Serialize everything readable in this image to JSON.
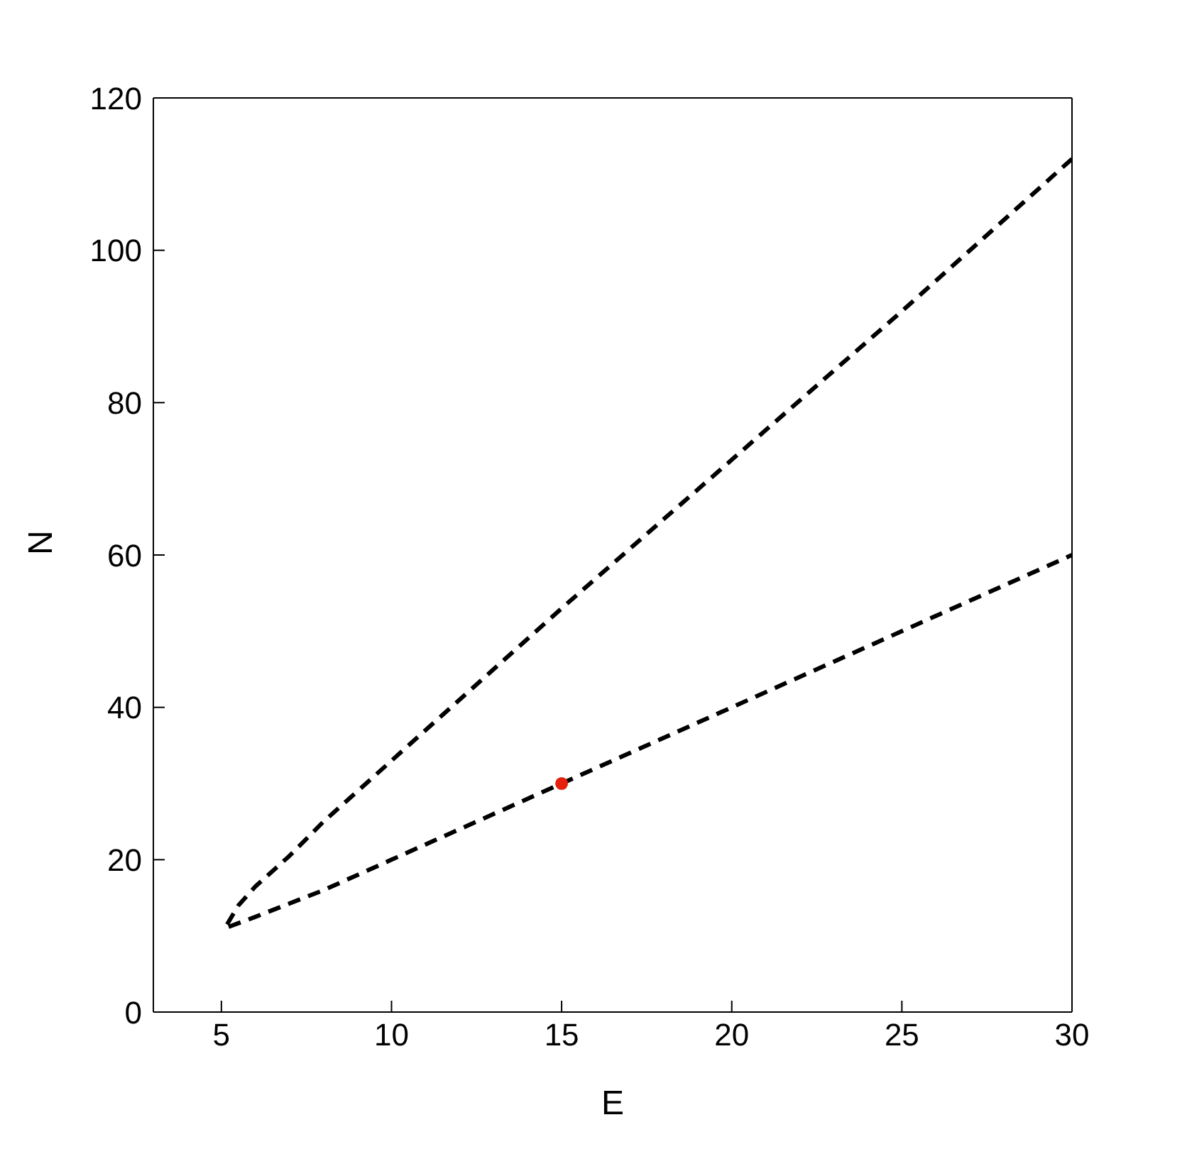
{
  "chart_data": {
    "type": "line",
    "xlabel": "E",
    "ylabel": "N",
    "xlim": [
      3,
      30
    ],
    "xticks": [
      5,
      10,
      15,
      20,
      25,
      30
    ],
    "ylim": [
      0,
      120
    ],
    "yticks": [
      0,
      20,
      40,
      60,
      80,
      100,
      120
    ],
    "line_style": "dashed",
    "marker": "none",
    "series": [
      {
        "color": "#000000",
        "x": [
          30,
          25,
          20,
          15,
          10,
          8,
          7,
          6,
          5.5,
          5.1,
          6,
          8,
          10,
          15,
          20,
          25,
          30
        ],
        "values": [
          112,
          92,
          72.5,
          53,
          33,
          25,
          20.5,
          16.5,
          14,
          11,
          12.5,
          16,
          20,
          30,
          40,
          50,
          60
        ]
      },
      {
        "type": "scatter",
        "color": "#e5200c",
        "marker": "circle",
        "x": [
          15
        ],
        "values": [
          30
        ]
      }
    ]
  }
}
